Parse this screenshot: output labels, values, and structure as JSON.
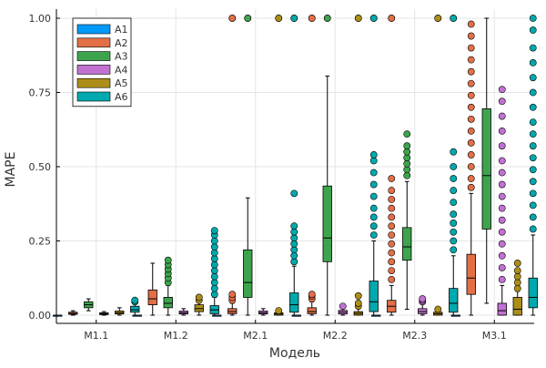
{
  "chart_data": {
    "type": "box",
    "title": "",
    "xlabel": "Модель",
    "ylabel": "MAPE",
    "ylim": [
      0,
      1
    ],
    "grid": true,
    "legend_position": "top-left",
    "y_ticks": [
      "0.00",
      "0.25",
      "0.50",
      "0.75",
      "1.00"
    ],
    "y_tick_values": [
      0,
      0.25,
      0.5,
      0.75,
      1.0
    ],
    "categories": [
      "M1.1",
      "M1.2",
      "M2.1",
      "M2.2",
      "M2.3",
      "M3.1"
    ],
    "series": [
      {
        "name": "A1",
        "color": "#009AFA",
        "boxes": [
          {
            "q1": 0.0,
            "median": 0.0,
            "q3": 0.0,
            "lower": 0.0,
            "upper": 0.0,
            "outliers": []
          },
          {
            "q1": 0.0,
            "median": 0.0,
            "q3": 0.0,
            "lower": 0.0,
            "upper": 0.0,
            "outliers": []
          },
          {
            "q1": 0.0,
            "median": 0.0,
            "q3": 0.0,
            "lower": 0.0,
            "upper": 0.0,
            "outliers": []
          },
          {
            "q1": 0.0,
            "median": 0.0,
            "q3": 0.0,
            "lower": 0.0,
            "upper": 0.0,
            "outliers": []
          },
          {
            "q1": 0.0,
            "median": 0.0,
            "q3": 0.0,
            "lower": 0.0,
            "upper": 0.0,
            "outliers": []
          },
          {
            "q1": 0.0,
            "median": 0.0,
            "q3": 0.0,
            "lower": 0.0,
            "upper": 0.0,
            "outliers": []
          }
        ]
      },
      {
        "name": "A2",
        "color": "#E26F46",
        "boxes": [
          {
            "q1": 0.003,
            "median": 0.006,
            "q3": 0.01,
            "lower": 0.0,
            "upper": 0.015,
            "outliers": []
          },
          {
            "q1": 0.035,
            "median": 0.055,
            "q3": 0.085,
            "lower": 0.0,
            "upper": 0.175,
            "outliers": []
          },
          {
            "q1": 0.005,
            "median": 0.012,
            "q3": 0.022,
            "lower": 0.0,
            "upper": 0.04,
            "outliers": [
              0.05,
              0.06,
              0.07,
              1.0,
              1.0
            ]
          },
          {
            "q1": 0.005,
            "median": 0.012,
            "q3": 0.025,
            "lower": 0.0,
            "upper": 0.045,
            "outliers": [
              0.055,
              0.065,
              0.07,
              1.0,
              1.0
            ]
          },
          {
            "q1": 0.01,
            "median": 0.03,
            "q3": 0.05,
            "lower": 0.0,
            "upper": 0.1,
            "outliers": [
              0.12,
              0.15,
              0.18,
              0.21,
              0.24,
              0.27,
              0.3,
              0.33,
              0.36,
              0.39,
              0.42,
              0.46,
              1.0,
              1.0
            ]
          },
          {
            "q1": 0.07,
            "median": 0.125,
            "q3": 0.205,
            "lower": 0.0,
            "upper": 0.41,
            "outliers": [
              0.43,
              0.46,
              0.5,
              0.54,
              0.58,
              0.62,
              0.66,
              0.7,
              0.74,
              0.78,
              0.82,
              0.86,
              0.9,
              0.94,
              0.98
            ]
          }
        ]
      },
      {
        "name": "A3",
        "color": "#3DA44D",
        "boxes": [
          {
            "q1": 0.025,
            "median": 0.035,
            "q3": 0.045,
            "lower": 0.015,
            "upper": 0.055,
            "outliers": []
          },
          {
            "q1": 0.025,
            "median": 0.04,
            "q3": 0.06,
            "lower": 0.0,
            "upper": 0.1,
            "outliers": [
              0.11,
              0.125,
              0.14,
              0.155,
              0.17,
              0.185
            ]
          },
          {
            "q1": 0.06,
            "median": 0.11,
            "q3": 0.22,
            "lower": 0.0,
            "upper": 0.395,
            "outliers": [
              1.0,
              1.0
            ]
          },
          {
            "q1": 0.18,
            "median": 0.26,
            "q3": 0.435,
            "lower": 0.0,
            "upper": 0.805,
            "outliers": [
              1.0,
              1.0
            ]
          },
          {
            "q1": 0.185,
            "median": 0.23,
            "q3": 0.295,
            "lower": 0.02,
            "upper": 0.45,
            "outliers": [
              0.47,
              0.49,
              0.51,
              0.53,
              0.55,
              0.57,
              0.61
            ]
          },
          {
            "q1": 0.29,
            "median": 0.47,
            "q3": 0.695,
            "lower": 0.04,
            "upper": 1.0,
            "outliers": []
          }
        ]
      },
      {
        "name": "A4",
        "color": "#C271D2",
        "boxes": [
          {
            "q1": 0.002,
            "median": 0.005,
            "q3": 0.008,
            "lower": 0.0,
            "upper": 0.012,
            "outliers": []
          },
          {
            "q1": 0.004,
            "median": 0.008,
            "q3": 0.014,
            "lower": 0.0,
            "upper": 0.022,
            "outliers": []
          },
          {
            "q1": 0.004,
            "median": 0.008,
            "q3": 0.014,
            "lower": 0.0,
            "upper": 0.022,
            "outliers": []
          },
          {
            "q1": 0.004,
            "median": 0.01,
            "q3": 0.016,
            "lower": 0.0,
            "upper": 0.026,
            "outliers": [
              0.03
            ]
          },
          {
            "q1": 0.005,
            "median": 0.012,
            "q3": 0.022,
            "lower": 0.0,
            "upper": 0.04,
            "outliers": [
              0.045,
              0.05,
              0.055
            ]
          },
          {
            "q1": 0.0,
            "median": 0.015,
            "q3": 0.04,
            "lower": 0.0,
            "upper": 0.1,
            "outliers": [
              0.12,
              0.16,
              0.2,
              0.24,
              0.28,
              0.32,
              0.36,
              0.4,
              0.44,
              0.48,
              0.52,
              0.57,
              0.62,
              0.67,
              0.72,
              0.76
            ]
          }
        ]
      },
      {
        "name": "A5",
        "color": "#AC8E18",
        "boxes": [
          {
            "q1": 0.004,
            "median": 0.008,
            "q3": 0.014,
            "lower": 0.0,
            "upper": 0.025,
            "outliers": []
          },
          {
            "q1": 0.012,
            "median": 0.022,
            "q3": 0.035,
            "lower": 0.0,
            "upper": 0.045,
            "outliers": [
              0.05,
              0.06
            ]
          },
          {
            "q1": 0.0,
            "median": 0.004,
            "q3": 0.008,
            "lower": 0.0,
            "upper": 0.012,
            "outliers": [
              0.015,
              1.0,
              1.0
            ]
          },
          {
            "q1": 0.0,
            "median": 0.006,
            "q3": 0.012,
            "lower": 0.0,
            "upper": 0.022,
            "outliers": [
              0.03,
              0.04,
              0.065,
              1.0,
              1.0
            ]
          },
          {
            "q1": 0.0,
            "median": 0.005,
            "q3": 0.01,
            "lower": 0.0,
            "upper": 0.018,
            "outliers": [
              0.02,
              1.0,
              1.0
            ]
          },
          {
            "q1": 0.0,
            "median": 0.02,
            "q3": 0.06,
            "lower": 0.0,
            "upper": 0.08,
            "outliers": [
              0.09,
              0.11,
              0.13,
              0.15,
              0.175
            ]
          }
        ]
      },
      {
        "name": "A6",
        "color": "#00A9AD",
        "boxes": [
          {
            "q1": 0.01,
            "median": 0.018,
            "q3": 0.03,
            "lower": 0.0,
            "upper": 0.04,
            "outliers": [
              0.045,
              0.05
            ]
          },
          {
            "q1": 0.005,
            "median": 0.018,
            "q3": 0.032,
            "lower": 0.0,
            "upper": 0.06,
            "outliers": [
              0.07,
              0.09,
              0.11,
              0.13,
              0.15,
              0.17,
              0.19,
              0.21,
              0.23,
              0.25,
              0.27,
              0.285
            ]
          },
          {
            "q1": 0.01,
            "median": 0.035,
            "q3": 0.075,
            "lower": 0.0,
            "upper": 0.165,
            "outliers": [
              0.18,
              0.2,
              0.22,
              0.24,
              0.26,
              0.28,
              0.3,
              0.41,
              1.0,
              1.0
            ]
          },
          {
            "q1": 0.012,
            "median": 0.045,
            "q3": 0.115,
            "lower": 0.0,
            "upper": 0.25,
            "outliers": [
              0.27,
              0.3,
              0.33,
              0.36,
              0.4,
              0.44,
              0.48,
              0.52,
              0.54,
              1.0,
              1.0
            ]
          },
          {
            "q1": 0.01,
            "median": 0.04,
            "q3": 0.09,
            "lower": 0.0,
            "upper": 0.2,
            "outliers": [
              0.22,
              0.25,
              0.28,
              0.31,
              0.34,
              0.38,
              0.42,
              0.46,
              0.5,
              0.55,
              1.0,
              1.0
            ]
          },
          {
            "q1": 0.025,
            "median": 0.06,
            "q3": 0.125,
            "lower": 0.0,
            "upper": 0.27,
            "outliers": [
              0.29,
              0.33,
              0.37,
              0.41,
              0.45,
              0.49,
              0.53,
              0.57,
              0.61,
              0.65,
              0.7,
              0.75,
              0.8,
              0.85,
              0.9,
              0.96,
              1.0
            ]
          }
        ]
      }
    ]
  }
}
